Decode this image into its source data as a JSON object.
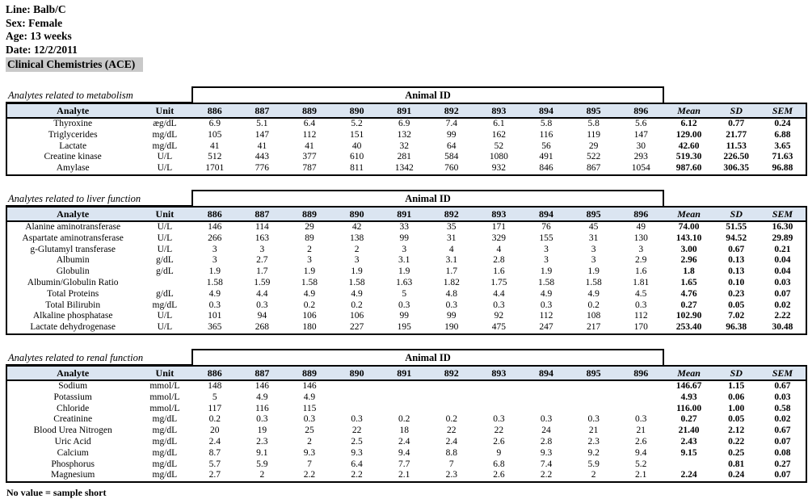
{
  "page": {
    "info_lines": [
      "Line: Balb/C",
      "Sex: Female",
      "Age: 13 weeks",
      "Date: 12/2/2011"
    ],
    "highlight_title": "Clinical Chemistries (ACE)",
    "footnote": "No value = sample short"
  },
  "colors": {
    "header_row_bg": "#dbe5f1",
    "highlight_bg": "#c9c9c9",
    "border": "#000000"
  },
  "columns": {
    "analyte": "Analyte",
    "unit": "Unit",
    "animal_group_label": "Animal ID",
    "animal_ids": [
      "886",
      "887",
      "889",
      "890",
      "891",
      "892",
      "893",
      "894",
      "895",
      "896"
    ],
    "stats": [
      "Mean",
      "SD",
      "SEM"
    ]
  },
  "sections": [
    {
      "title": "Analytes related to metabolism",
      "rows": [
        {
          "analyte": "Thyroxine",
          "unit": "æg/dL",
          "values": [
            "6.9",
            "5.1",
            "6.4",
            "5.2",
            "6.9",
            "7.4",
            "6.1",
            "5.8",
            "5.8",
            "5.6"
          ],
          "mean": "6.12",
          "sd": "0.77",
          "sem": "0.24"
        },
        {
          "analyte": "Triglycerides",
          "unit": "mg/dL",
          "values": [
            "105",
            "147",
            "112",
            "151",
            "132",
            "99",
            "162",
            "116",
            "119",
            "147"
          ],
          "mean": "129.00",
          "sd": "21.77",
          "sem": "6.88"
        },
        {
          "analyte": "Lactate",
          "unit": "mg/dL",
          "values": [
            "41",
            "41",
            "41",
            "40",
            "32",
            "64",
            "52",
            "56",
            "29",
            "30"
          ],
          "mean": "42.60",
          "sd": "11.53",
          "sem": "3.65"
        },
        {
          "analyte": "Creatine kinase",
          "unit": "U/L",
          "values": [
            "512",
            "443",
            "377",
            "610",
            "281",
            "584",
            "1080",
            "491",
            "522",
            "293"
          ],
          "mean": "519.30",
          "sd": "226.50",
          "sem": "71.63"
        },
        {
          "analyte": "Amylase",
          "unit": "U/L",
          "values": [
            "1701",
            "776",
            "787",
            "811",
            "1342",
            "760",
            "932",
            "846",
            "867",
            "1054"
          ],
          "mean": "987.60",
          "sd": "306.35",
          "sem": "96.88"
        }
      ]
    },
    {
      "title": "Analytes related to liver function",
      "rows": [
        {
          "analyte": "Alanine aminotransferase",
          "unit": "U/L",
          "values": [
            "146",
            "114",
            "29",
            "42",
            "33",
            "35",
            "171",
            "76",
            "45",
            "49"
          ],
          "mean": "74.00",
          "sd": "51.55",
          "sem": "16.30"
        },
        {
          "analyte": "Aspartate aminotransferase",
          "unit": "U/L",
          "values": [
            "266",
            "163",
            "89",
            "138",
            "99",
            "31",
            "329",
            "155",
            "31",
            "130"
          ],
          "mean": "143.10",
          "sd": "94.52",
          "sem": "29.89"
        },
        {
          "analyte": "g-Glutamyl transferase",
          "unit": "U/L",
          "values": [
            "3",
            "3",
            "2",
            "2",
            "3",
            "4",
            "4",
            "3",
            "3",
            "3"
          ],
          "mean": "3.00",
          "sd": "0.67",
          "sem": "0.21"
        },
        {
          "analyte": "Albumin",
          "unit": "g/dL",
          "values": [
            "3",
            "2.7",
            "3",
            "3",
            "3.1",
            "3.1",
            "2.8",
            "3",
            "3",
            "2.9"
          ],
          "mean": "2.96",
          "sd": "0.13",
          "sem": "0.04"
        },
        {
          "analyte": "Globulin",
          "unit": "g/dL",
          "values": [
            "1.9",
            "1.7",
            "1.9",
            "1.9",
            "1.9",
            "1.7",
            "1.6",
            "1.9",
            "1.9",
            "1.6"
          ],
          "mean": "1.8",
          "sd": "0.13",
          "sem": "0.04"
        },
        {
          "analyte": "Albumin/Globulin Ratio",
          "unit": "",
          "values": [
            "1.58",
            "1.59",
            "1.58",
            "1.58",
            "1.63",
            "1.82",
            "1.75",
            "1.58",
            "1.58",
            "1.81"
          ],
          "mean": "1.65",
          "sd": "0.10",
          "sem": "0.03"
        },
        {
          "analyte": "Total Proteins",
          "unit": "g/dL",
          "values": [
            "4.9",
            "4.4",
            "4.9",
            "4.9",
            "5",
            "4.8",
            "4.4",
            "4.9",
            "4.9",
            "4.5"
          ],
          "mean": "4.76",
          "sd": "0.23",
          "sem": "0.07"
        },
        {
          "analyte": "Total Bilirubin",
          "unit": "mg/dL",
          "values": [
            "0.3",
            "0.3",
            "0.2",
            "0.2",
            "0.3",
            "0.3",
            "0.3",
            "0.3",
            "0.2",
            "0.3"
          ],
          "mean": "0.27",
          "sd": "0.05",
          "sem": "0.02"
        },
        {
          "analyte": "Alkaline phosphatase",
          "unit": "U/L",
          "values": [
            "101",
            "94",
            "106",
            "106",
            "99",
            "99",
            "92",
            "112",
            "108",
            "112"
          ],
          "mean": "102.90",
          "sd": "7.02",
          "sem": "2.22"
        },
        {
          "analyte": "Lactate dehydrogenase",
          "unit": "U/L",
          "values": [
            "365",
            "268",
            "180",
            "227",
            "195",
            "190",
            "475",
            "247",
            "217",
            "170"
          ],
          "mean": "253.40",
          "sd": "96.38",
          "sem": "30.48"
        }
      ]
    },
    {
      "title": "Analytes related to renal function",
      "rows": [
        {
          "analyte": "Sodium",
          "unit": "mmol/L",
          "values": [
            "148",
            "146",
            "146",
            "",
            "",
            "",
            "",
            "",
            "",
            ""
          ],
          "mean": "146.67",
          "sd": "1.15",
          "sem": "0.67"
        },
        {
          "analyte": "Potassium",
          "unit": "mmol/L",
          "values": [
            "5",
            "4.9",
            "4.9",
            "",
            "",
            "",
            "",
            "",
            "",
            ""
          ],
          "mean": "4.93",
          "sd": "0.06",
          "sem": "0.03"
        },
        {
          "analyte": "Chloride",
          "unit": "mmol/L",
          "values": [
            "117",
            "116",
            "115",
            "",
            "",
            "",
            "",
            "",
            "",
            ""
          ],
          "mean": "116.00",
          "sd": "1.00",
          "sem": "0.58"
        },
        {
          "analyte": "Creatinine",
          "unit": "mg/dL",
          "values": [
            "0.2",
            "0.3",
            "0.3",
            "0.3",
            "0.2",
            "0.2",
            "0.3",
            "0.3",
            "0.3",
            "0.3"
          ],
          "mean": "0.27",
          "sd": "0.05",
          "sem": "0.02"
        },
        {
          "analyte": "Blood Urea Nitrogen",
          "unit": "mg/dL",
          "values": [
            "20",
            "19",
            "25",
            "22",
            "18",
            "22",
            "22",
            "24",
            "21",
            "21"
          ],
          "mean": "21.40",
          "sd": "2.12",
          "sem": "0.67"
        },
        {
          "analyte": "Uric Acid",
          "unit": "mg/dL",
          "values": [
            "2.4",
            "2.3",
            "2",
            "2.5",
            "2.4",
            "2.4",
            "2.6",
            "2.8",
            "2.3",
            "2.6"
          ],
          "mean": "2.43",
          "sd": "0.22",
          "sem": "0.07"
        },
        {
          "analyte": "Calcium",
          "unit": "mg/dL",
          "values": [
            "8.7",
            "9.1",
            "9.3",
            "9.3",
            "9.4",
            "8.8",
            "9",
            "9.3",
            "9.2",
            "9.4"
          ],
          "mean": "9.15",
          "sd": "0.25",
          "sem": "0.08"
        },
        {
          "analyte": "Phosphorus",
          "unit": "mg/dL",
          "values": [
            "5.7",
            "5.9",
            "7",
            "6.4",
            "7.7",
            "7",
            "6.8",
            "7.4",
            "5.9",
            "5.2"
          ],
          "mean": "",
          "sd": "0.81",
          "sem": "0.27"
        },
        {
          "analyte": "Magnesium",
          "unit": "mg/dL",
          "values": [
            "2.7",
            "2",
            "2.2",
            "2.2",
            "2.1",
            "2.3",
            "2.6",
            "2.2",
            "2",
            "2.1"
          ],
          "mean": "2.24",
          "sd": "0.24",
          "sem": "0.07"
        }
      ]
    }
  ]
}
